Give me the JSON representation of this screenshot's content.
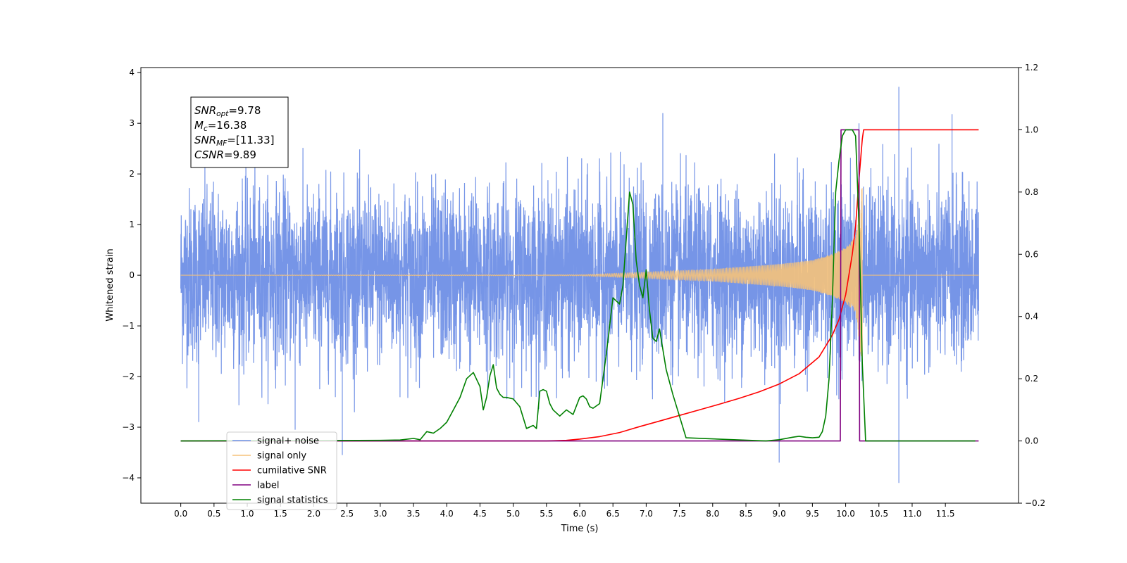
{
  "chart_data": {
    "type": "line",
    "title": "",
    "xlabel": "Time (s)",
    "ylabel": "Whitened strain",
    "y2label": "",
    "xlim": [
      -0.6,
      12.6
    ],
    "ylim": [
      -4.5,
      4.1
    ],
    "y2lim": [
      -0.2,
      1.2
    ],
    "xticks": [
      0.0,
      0.5,
      1.0,
      1.5,
      2.0,
      2.5,
      3.0,
      3.5,
      4.0,
      4.5,
      5.0,
      5.5,
      6.0,
      6.5,
      7.0,
      7.5,
      8.0,
      8.5,
      9.0,
      9.5,
      10.0,
      10.5,
      11.0,
      11.5
    ],
    "xtick_labels": [
      "0.0",
      "0.5",
      "1.0",
      "1.5",
      "2.0",
      "2.5",
      "3.0",
      "3.5",
      "4.0",
      "4.5",
      "5.0",
      "5.5",
      "6.0",
      "6.5",
      "7.0",
      "7.5",
      "8.0",
      "8.5",
      "9.0",
      "9.5",
      "10.0",
      "10.5",
      "11.0",
      "11.5"
    ],
    "yticks": [
      -4,
      -3,
      -2,
      -1,
      0,
      1,
      2,
      3,
      4
    ],
    "ytick_labels": [
      "−4",
      "−3",
      "−2",
      "−1",
      "0",
      "1",
      "2",
      "3",
      "4"
    ],
    "y2ticks": [
      -0.2,
      0.0,
      0.2,
      0.4,
      0.6,
      0.8,
      1.0,
      1.2
    ],
    "y2tick_labels": [
      "−0.2",
      "0.0",
      "0.2",
      "0.4",
      "0.6",
      "0.8",
      "1.0",
      "1.2"
    ],
    "grid": false,
    "legend_position": "bottom-left",
    "series": [
      {
        "name": "signal+ noise",
        "axis": "left",
        "color": "#6f8fe6",
        "kind": "noise",
        "x_range": [
          0.0,
          12.0
        ],
        "approx_std": 0.85,
        "spikes": [
          [
            0.27,
            -2.9
          ],
          [
            1.72,
            -3.05
          ],
          [
            2.43,
            -3.55
          ],
          [
            7.25,
            3.2
          ],
          [
            9.0,
            -3.7
          ],
          [
            10.2,
            3.0
          ],
          [
            10.8,
            3.72
          ],
          [
            10.8,
            -4.1
          ],
          [
            11.6,
            3.18
          ]
        ]
      },
      {
        "name": "signal only",
        "axis": "left",
        "color": "#f6c27a",
        "kind": "chirp",
        "x_range": [
          0.0,
          10.25
        ],
        "amplitude_points": [
          [
            0.0,
            0.0
          ],
          [
            6.0,
            0.01
          ],
          [
            7.0,
            0.06
          ],
          [
            8.0,
            0.12
          ],
          [
            9.0,
            0.22
          ],
          [
            9.5,
            0.3
          ],
          [
            9.8,
            0.42
          ],
          [
            10.0,
            0.55
          ],
          [
            10.15,
            0.75
          ],
          [
            10.25,
            1.8
          ]
        ]
      },
      {
        "name": "cumilative SNR",
        "axis": "right",
        "color": "#ff0000",
        "x": [
          0.0,
          5.5,
          5.8,
          6.0,
          6.3,
          6.6,
          6.9,
          7.2,
          7.5,
          7.8,
          8.1,
          8.4,
          8.7,
          9.0,
          9.3,
          9.6,
          9.8,
          9.9,
          10.0,
          10.1,
          10.15,
          10.2,
          10.25,
          10.27,
          12.0
        ],
        "values": [
          0.0,
          0.0,
          0.002,
          0.006,
          0.014,
          0.027,
          0.046,
          0.064,
          0.082,
          0.1,
          0.118,
          0.137,
          0.158,
          0.183,
          0.216,
          0.27,
          0.34,
          0.39,
          0.47,
          0.6,
          0.69,
          0.84,
          0.97,
          1.0,
          1.0
        ]
      },
      {
        "name": "label",
        "axis": "right",
        "color": "#800080",
        "x": [
          0.0,
          9.92,
          9.93,
          10.2,
          10.21,
          12.0
        ],
        "values": [
          0.0,
          0.0,
          1.0,
          1.0,
          0.0,
          0.0
        ]
      },
      {
        "name": "signal statistics",
        "axis": "right",
        "color": "#008000",
        "x": [
          0.0,
          3.0,
          3.3,
          3.5,
          3.6,
          3.7,
          3.8,
          3.9,
          4.0,
          4.1,
          4.2,
          4.3,
          4.4,
          4.5,
          4.55,
          4.6,
          4.65,
          4.7,
          4.75,
          4.8,
          4.85,
          4.9,
          5.0,
          5.1,
          5.2,
          5.3,
          5.35,
          5.4,
          5.45,
          5.5,
          5.55,
          5.6,
          5.7,
          5.8,
          5.9,
          6.0,
          6.05,
          6.1,
          6.15,
          6.2,
          6.3,
          6.4,
          6.5,
          6.6,
          6.65,
          6.7,
          6.75,
          6.8,
          6.85,
          6.9,
          6.95,
          7.0,
          7.05,
          7.1,
          7.15,
          7.2,
          7.3,
          7.4,
          7.5,
          7.6,
          8.8,
          9.0,
          9.2,
          9.3,
          9.4,
          9.5,
          9.6,
          9.65,
          9.7,
          9.75,
          9.8,
          9.85,
          9.9,
          9.95,
          10.0,
          10.05,
          10.1,
          10.15,
          10.2,
          10.25,
          10.3,
          11.0,
          11.95
        ],
        "values": [
          0.0,
          0.002,
          0.003,
          0.008,
          0.004,
          0.03,
          0.025,
          0.04,
          0.06,
          0.1,
          0.14,
          0.2,
          0.22,
          0.175,
          0.1,
          0.14,
          0.21,
          0.245,
          0.17,
          0.15,
          0.14,
          0.14,
          0.135,
          0.11,
          0.04,
          0.05,
          0.04,
          0.16,
          0.165,
          0.16,
          0.12,
          0.1,
          0.08,
          0.1,
          0.085,
          0.14,
          0.145,
          0.135,
          0.11,
          0.105,
          0.12,
          0.28,
          0.46,
          0.44,
          0.5,
          0.65,
          0.8,
          0.76,
          0.58,
          0.5,
          0.46,
          0.55,
          0.42,
          0.33,
          0.32,
          0.36,
          0.23,
          0.15,
          0.08,
          0.01,
          0.0,
          0.004,
          0.012,
          0.015,
          0.012,
          0.01,
          0.012,
          0.03,
          0.08,
          0.2,
          0.45,
          0.8,
          0.9,
          0.98,
          1.0,
          1.0,
          1.0,
          0.98,
          0.7,
          0.25,
          0.0,
          0.0,
          0.0
        ]
      }
    ],
    "annotation": {
      "lines": [
        {
          "base": "SNR",
          "sub": "opt",
          "value": "=9.78"
        },
        {
          "base": "M",
          "sub": "c",
          "value": "=16.38"
        },
        {
          "base": "SNR",
          "sub": "MF",
          "value": "=[11.33]"
        },
        {
          "base": "CSNR",
          "sub": "",
          "value": "=9.89"
        }
      ]
    }
  }
}
